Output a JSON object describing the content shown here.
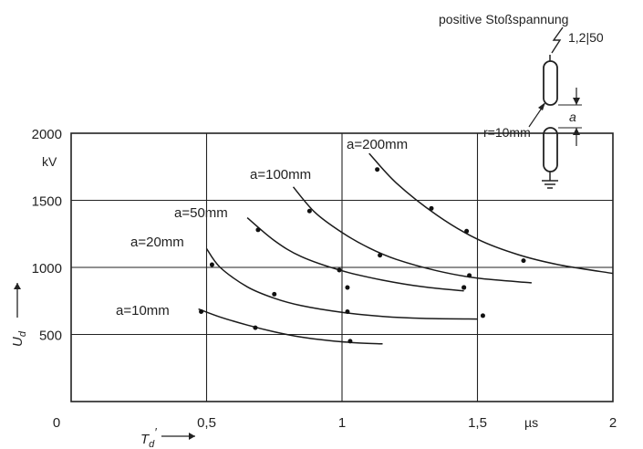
{
  "chart_data": {
    "type": "scatter",
    "xlabel_symbol": "T",
    "xlabel_sub": "d",
    "xlabel_prime": "′",
    "xunit": "µs",
    "ylabel_symbol": "U",
    "ylabel_sub": "d",
    "yunit": "kV",
    "xlim": [
      0,
      2
    ],
    "ylim": [
      0,
      2000
    ],
    "xticks": [
      {
        "value": 0,
        "label": "0"
      },
      {
        "value": 0.5,
        "label": "0,5"
      },
      {
        "value": 1,
        "label": "1"
      },
      {
        "value": 1.5,
        "label": "1,5"
      },
      {
        "value": 2,
        "label": "2"
      }
    ],
    "yticks": [
      {
        "value": 500,
        "label": "500"
      },
      {
        "value": 1000,
        "label": "1000"
      },
      {
        "value": 1500,
        "label": "1500"
      },
      {
        "value": 2000,
        "label": "2000"
      }
    ],
    "grid": true,
    "series": [
      {
        "name": "a=10mm",
        "points": [
          [
            0.48,
            670
          ],
          [
            0.68,
            550
          ],
          [
            1.02,
            670
          ],
          [
            1.03,
            450
          ]
        ],
        "curve": [
          [
            0.47,
            690
          ],
          [
            0.55,
            630
          ],
          [
            0.65,
            570
          ],
          [
            0.75,
            520
          ],
          [
            0.85,
            480
          ],
          [
            0.95,
            455
          ],
          [
            1.05,
            438
          ],
          [
            1.15,
            430
          ]
        ]
      },
      {
        "name": "a=20mm",
        "points": [
          [
            0.52,
            1020
          ],
          [
            0.75,
            800
          ],
          [
            1.02,
            850
          ],
          [
            1.45,
            850
          ],
          [
            1.52,
            640
          ]
        ],
        "curve": [
          [
            0.5,
            1140
          ],
          [
            0.55,
            1000
          ],
          [
            0.65,
            855
          ],
          [
            0.75,
            770
          ],
          [
            0.85,
            715
          ],
          [
            1.0,
            665
          ],
          [
            1.15,
            635
          ],
          [
            1.3,
            620
          ],
          [
            1.5,
            615
          ]
        ]
      },
      {
        "name": "a=50mm",
        "points": [
          [
            0.69,
            1280
          ],
          [
            0.99,
            980
          ],
          [
            1.45,
            850
          ]
        ],
        "curve": [
          [
            0.65,
            1370
          ],
          [
            0.75,
            1200
          ],
          [
            0.85,
            1080
          ],
          [
            1.0,
            975
          ],
          [
            1.15,
            905
          ],
          [
            1.3,
            855
          ],
          [
            1.45,
            825
          ]
        ]
      },
      {
        "name": "a=100mm",
        "points": [
          [
            0.88,
            1420
          ],
          [
            1.14,
            1090
          ],
          [
            1.47,
            940
          ]
        ],
        "curve": [
          [
            0.82,
            1600
          ],
          [
            0.9,
            1410
          ],
          [
            1.0,
            1260
          ],
          [
            1.1,
            1145
          ],
          [
            1.2,
            1060
          ],
          [
            1.35,
            975
          ],
          [
            1.5,
            920
          ],
          [
            1.7,
            885
          ]
        ]
      },
      {
        "name": "a=200mm",
        "points": [
          [
            1.13,
            1730
          ],
          [
            1.33,
            1440
          ],
          [
            1.46,
            1270
          ],
          [
            1.67,
            1050
          ]
        ],
        "curve": [
          [
            1.1,
            1850
          ],
          [
            1.2,
            1630
          ],
          [
            1.35,
            1390
          ],
          [
            1.5,
            1210
          ],
          [
            1.65,
            1095
          ],
          [
            1.8,
            1020
          ],
          [
            2.0,
            955
          ]
        ]
      }
    ]
  },
  "diagram": {
    "title": "positive Stoßspannung",
    "waveform": "1,2|50",
    "radius_label": "r=10mm",
    "gap_label": "a"
  }
}
